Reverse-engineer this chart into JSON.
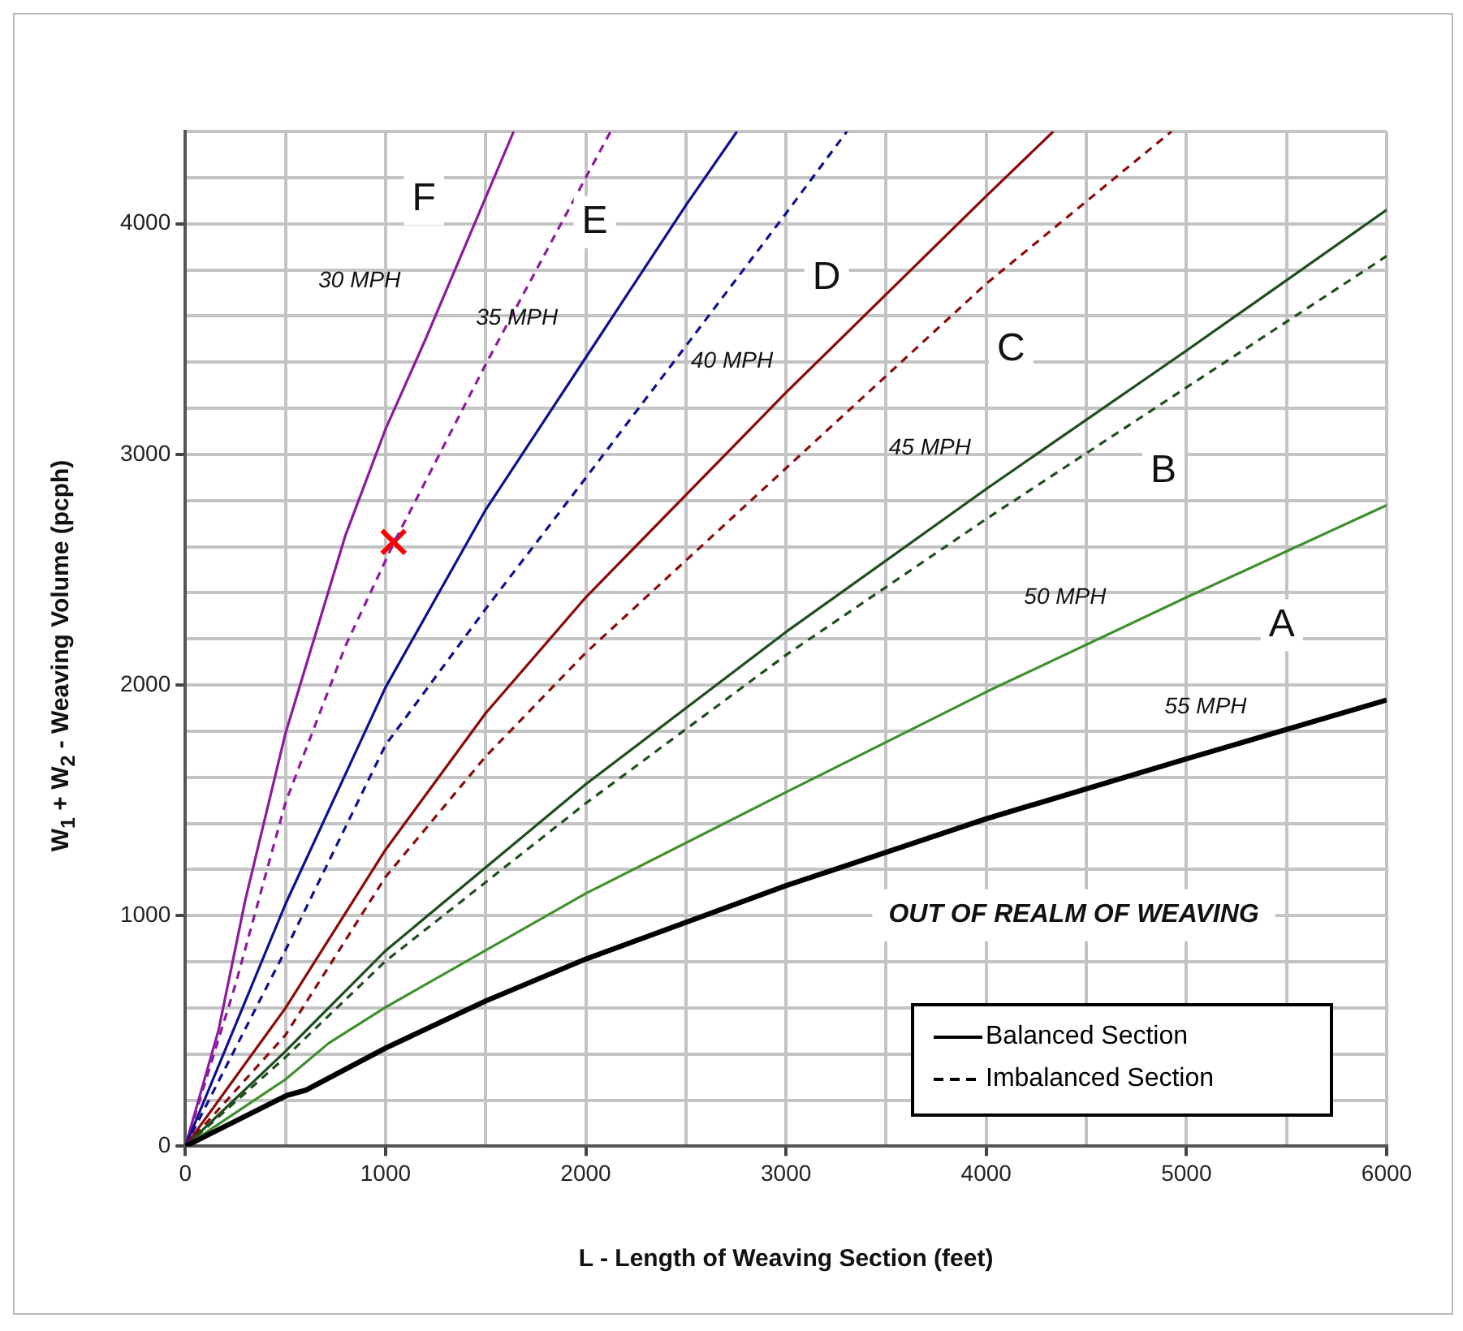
{
  "chart_data": {
    "type": "line",
    "xlabel": "L - Length of Weaving Section (feet)",
    "ylabel": "W$_{1}$ + W$_{2}$ - Weaving Volume (pcph)",
    "xlim": [
      0,
      6000
    ],
    "ylim": [
      0,
      4400
    ],
    "xticks": [
      0,
      {
        "value": 500,
        "label": null
      },
      1000,
      {
        "value": 1500,
        "label": null
      },
      2000,
      {
        "value": 2500,
        "label": null
      },
      3000,
      {
        "value": 3500,
        "label": null
      },
      4000,
      {
        "value": 4500,
        "label": null
      },
      5000,
      {
        "value": 5500,
        "label": null
      },
      6000
    ],
    "yticks": [
      0,
      {
        "value": 200,
        "label": null
      },
      {
        "value": 400,
        "label": null
      },
      {
        "value": 600,
        "label": null
      },
      {
        "value": 800,
        "label": null
      },
      1000,
      {
        "value": 1200,
        "label": null
      },
      {
        "value": 1400,
        "label": null
      },
      {
        "value": 1600,
        "label": null
      },
      {
        "value": 1800,
        "label": null
      },
      2000,
      {
        "value": 2200,
        "label": null
      },
      {
        "value": 2400,
        "label": null
      },
      {
        "value": 2600,
        "label": null
      },
      {
        "value": 2800,
        "label": null
      },
      3000,
      {
        "value": 3200,
        "label": null
      },
      {
        "value": 3400,
        "label": null
      },
      {
        "value": 3600,
        "label": null
      },
      {
        "value": 3800,
        "label": null
      },
      4000,
      {
        "value": 4200,
        "label": null
      },
      {
        "value": 4400,
        "label": null
      }
    ],
    "grid": true,
    "legend": false,
    "marker": "none",
    "series": [
      {
        "color": "#000000",
        "line_style": "solid",
        "x": [
          0,
          505,
          603,
          1000,
          1500,
          2000,
          3000,
          4000,
          5000,
          6000
        ],
        "values": [
          0,
          220,
          244,
          426,
          630,
          812,
          1130,
          1420,
          1680,
          1935
        ]
      },
      {
        "color": "#3f8f2f",
        "line_style": "solid",
        "x": [
          0,
          500,
          716,
          1000,
          2000,
          3000,
          4000,
          5000,
          6000
        ],
        "values": [
          0,
          290,
          447,
          603,
          1096,
          1535,
          1970,
          2380,
          2780
        ]
      },
      {
        "color": "#1e4d1e",
        "line_style": "solid",
        "x": [
          0,
          500,
          1000,
          2000,
          3000,
          4000,
          5000,
          6000
        ],
        "values": [
          0,
          412,
          848,
          1570,
          2230,
          2850,
          3450,
          4060
        ]
      },
      {
        "color": "#1e4d1e",
        "line_style": "dashed",
        "x": [
          0,
          500,
          1000,
          2000,
          3000,
          4000,
          5000,
          6000
        ],
        "values": [
          0,
          386,
          803,
          1487,
          2130,
          2720,
          3290,
          3860
        ]
      },
      {
        "color": "#8b0a0a",
        "line_style": "solid",
        "x": [
          0,
          500,
          1000,
          1500,
          2000,
          3000,
          4000,
          4335
        ],
        "values": [
          0,
          599,
          1286,
          1878,
          2380,
          3268,
          4120,
          4400
        ]
      },
      {
        "color": "#8b0a0a",
        "line_style": "dashed",
        "x": [
          0,
          500,
          1000,
          1500,
          2000,
          3000,
          4000,
          4925
        ],
        "values": [
          0,
          482,
          1168,
          1690,
          2140,
          2940,
          3740,
          4400
        ]
      },
      {
        "color": "#10108f",
        "line_style": "solid",
        "x": [
          0,
          500,
          1000,
          1500,
          2000,
          2500,
          2755
        ],
        "values": [
          0,
          1050,
          1990,
          2760,
          3420,
          4080,
          4400
        ]
      },
      {
        "color": "#10108f",
        "line_style": "dashed",
        "x": [
          0,
          500,
          1000,
          1500,
          2000,
          2500,
          3000,
          3304
        ],
        "values": [
          0,
          850,
          1740,
          2330,
          2898,
          3470,
          4045,
          4400
        ]
      },
      {
        "color": "#8e1a9e",
        "line_style": "solid",
        "x": [
          0,
          166,
          300,
          500,
          800,
          1000,
          1200,
          1640
        ],
        "values": [
          0,
          504,
          1070,
          1790,
          2650,
          3110,
          3500,
          4400
        ]
      },
      {
        "color": "#8e1a9e",
        "line_style": "dashed",
        "x": [
          0,
          250,
          500,
          800,
          1040,
          1500,
          2000,
          2124
        ],
        "values": [
          0,
          700,
          1490,
          2170,
          2614,
          3390,
          4200,
          4400
        ]
      },
      {
        "type": "scatter",
        "marker": "cross",
        "color": "#ff0000",
        "x": [
          1040
        ],
        "values": [
          2620
        ]
      }
    ],
    "annotations": [
      {
        "text": "F",
        "x": 1192,
        "y": 4106
      },
      {
        "text": "E",
        "x": 2045,
        "y": 4007
      },
      {
        "text": "D",
        "x": 3203,
        "y": 3765
      },
      {
        "text": "C",
        "x": 4124,
        "y": 3453
      },
      {
        "text": "B",
        "x": 4885,
        "y": 2927
      },
      {
        "text": "A",
        "x": 5476,
        "y": 2259
      },
      "30 MPH",
      "35 MPH",
      "40 MPH",
      "45 MPH",
      "50 MPH",
      "55 MPH",
      "OUT OF REALM OF WEAVING",
      "Balanced Section",
      "Imbalanced Section"
    ]
  }
}
